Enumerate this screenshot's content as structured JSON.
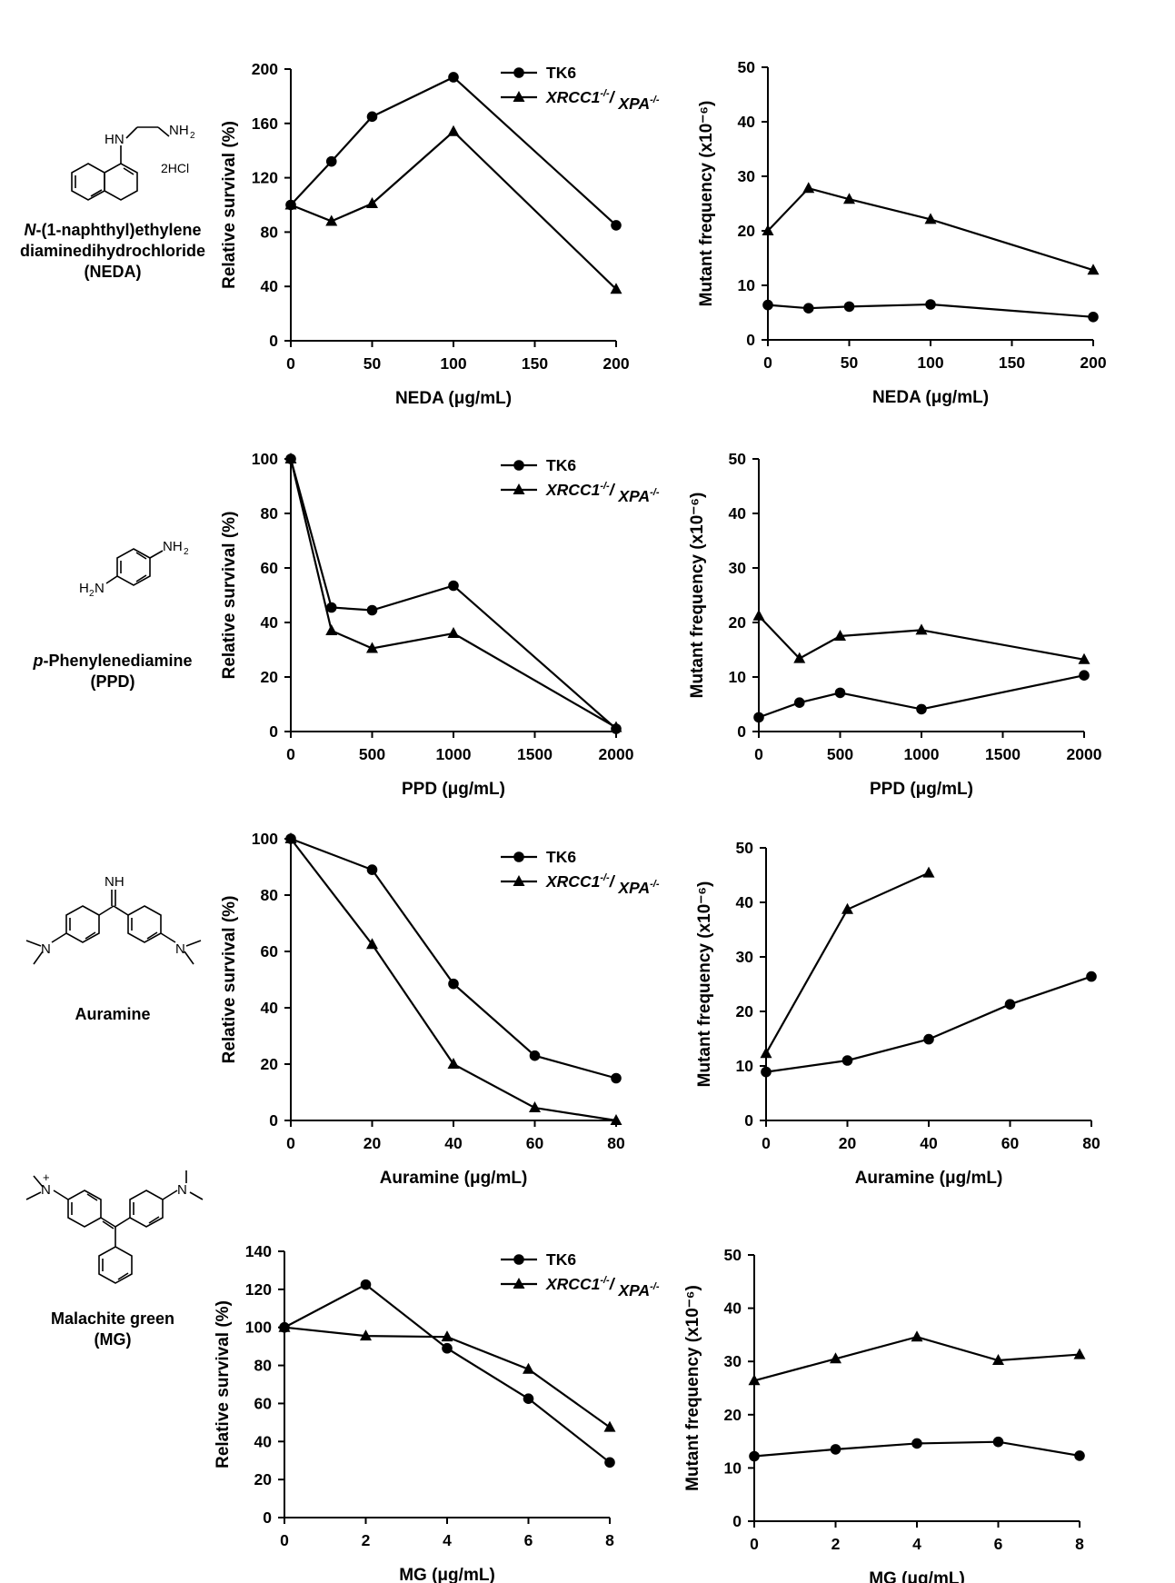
{
  "compounds": [
    {
      "name_italic": "N",
      "name_line1_rest": "-(1-naphthyl)ethylene",
      "name_line2": "diaminedihydrochloride",
      "name_line3": "(NEDA)",
      "structure_labels": {
        "amine": "HN",
        "amine2": "NH",
        "amine2_sub": "2",
        "salt": "2HCl"
      }
    },
    {
      "name_italic": "p",
      "name_line1_rest": "-Phenylenediamine",
      "name_line2": "(PPD)",
      "structure_labels": {
        "top": "NH",
        "top_sub": "2",
        "bottom_h": "H",
        "bottom_sub": "2",
        "bottom_n": "N"
      }
    },
    {
      "name_line1": "Auramine",
      "structure_labels": {
        "imine": "NH",
        "n_left": "N",
        "n_right": "N"
      }
    },
    {
      "name_line1": "Malachite green",
      "name_line2": "(MG)",
      "structure_labels": {
        "n_left": "N",
        "plus": "+",
        "n_right": "N"
      }
    }
  ],
  "legend": {
    "tk6": "TK6",
    "mut_a": "XRCC1",
    "mut_a_sup": "-/-",
    "mut_sep": "/ ",
    "mut_b": "XPA",
    "mut_b_sup": "-/-"
  },
  "chart_data": [
    {
      "type": "line",
      "panel": "NEDA survival",
      "xlabel": "NEDA (μg/mL)",
      "ylabel": "Relative survival (%)",
      "xlim": [
        0,
        200
      ],
      "xticks": [
        0,
        50,
        100,
        150,
        200
      ],
      "ylim": [
        0,
        200
      ],
      "yticks": [
        0,
        40,
        80,
        120,
        160,
        200
      ],
      "legend": true,
      "series": [
        {
          "name": "TK6",
          "marker": "circle",
          "x": [
            0,
            25,
            50,
            100,
            200
          ],
          "y": [
            100,
            132,
            165,
            194,
            85
          ]
        },
        {
          "name": "XRCC1-/-/ XPA-/-",
          "marker": "triangle",
          "x": [
            0,
            25,
            50,
            100,
            200
          ],
          "y": [
            100,
            88,
            101,
            154,
            38
          ]
        }
      ]
    },
    {
      "type": "line",
      "panel": "NEDA mutant frequency",
      "xlabel": "NEDA (μg/mL)",
      "ylabel": "Mutant frequency (x10⁻⁶)",
      "xlim": [
        0,
        200
      ],
      "xticks": [
        0,
        50,
        100,
        150,
        200
      ],
      "ylim": [
        0,
        50
      ],
      "yticks": [
        0,
        10,
        20,
        30,
        40,
        50
      ],
      "legend": false,
      "series": [
        {
          "name": "TK6",
          "marker": "circle",
          "x": [
            0,
            25,
            50,
            100,
            200
          ],
          "y": [
            6.4,
            5.8,
            6.1,
            6.5,
            4.2
          ]
        },
        {
          "name": "XRCC1-/-/ XPA-/-",
          "marker": "triangle",
          "x": [
            0,
            25,
            50,
            100,
            200
          ],
          "y": [
            20,
            27.8,
            25.8,
            22.1,
            12.8
          ]
        }
      ]
    },
    {
      "type": "line",
      "panel": "PPD survival",
      "xlabel": "PPD (μg/mL)",
      "ylabel": "Relative survival (%)",
      "xlim": [
        0,
        2000
      ],
      "xticks": [
        0,
        500,
        1000,
        1500,
        2000
      ],
      "ylim": [
        0,
        100
      ],
      "yticks": [
        0,
        20,
        40,
        60,
        80,
        100
      ],
      "legend": true,
      "series": [
        {
          "name": "TK6",
          "marker": "circle",
          "x": [
            0,
            250,
            500,
            1000,
            2000
          ],
          "y": [
            100,
            45.5,
            44.5,
            53.5,
            1
          ]
        },
        {
          "name": "XRCC1-/-/ XPA-/-",
          "marker": "triangle",
          "x": [
            0,
            250,
            500,
            1000,
            2000
          ],
          "y": [
            100,
            37,
            30.5,
            36,
            1.5
          ]
        }
      ]
    },
    {
      "type": "line",
      "panel": "PPD mutant frequency",
      "xlabel": "PPD (μg/mL)",
      "ylabel": "Mutant frequency (x10⁻⁶)",
      "xlim": [
        0,
        2000
      ],
      "xticks": [
        0,
        500,
        1000,
        1500,
        2000
      ],
      "ylim": [
        0,
        50
      ],
      "yticks": [
        0,
        10,
        20,
        30,
        40,
        50
      ],
      "legend": false,
      "series": [
        {
          "name": "TK6",
          "marker": "circle",
          "x": [
            0,
            250,
            500,
            1000,
            2000
          ],
          "y": [
            2.6,
            5.3,
            7.1,
            4.1,
            10.3
          ]
        },
        {
          "name": "XRCC1-/-/ XPA-/-",
          "marker": "triangle",
          "x": [
            0,
            250,
            500,
            1000,
            2000
          ],
          "y": [
            21.2,
            13.4,
            17.5,
            18.6,
            13.2
          ]
        }
      ]
    },
    {
      "type": "line",
      "panel": "Auramine survival",
      "xlabel": "Auramine (μg/mL)",
      "ylabel": "Relative survival (%)",
      "xlim": [
        0,
        80
      ],
      "xticks": [
        0,
        20,
        40,
        60,
        80
      ],
      "ylim": [
        0,
        100
      ],
      "yticks": [
        0,
        20,
        40,
        60,
        80,
        100
      ],
      "legend": true,
      "series": [
        {
          "name": "TK6",
          "marker": "circle",
          "x": [
            0,
            20,
            40,
            60,
            80
          ],
          "y": [
            100,
            89,
            48.5,
            23,
            15
          ]
        },
        {
          "name": "XRCC1-/-/ XPA-/-",
          "marker": "triangle",
          "x": [
            0,
            20,
            40,
            60,
            80
          ],
          "y": [
            100,
            62.5,
            20,
            4.5,
            0
          ]
        }
      ]
    },
    {
      "type": "line",
      "panel": "Auramine mutant frequency",
      "xlabel": "Auramine (μg/mL)",
      "ylabel": "Mutant frequency (x10⁻⁶)",
      "xlim": [
        0,
        80
      ],
      "xticks": [
        0,
        20,
        40,
        60,
        80
      ],
      "ylim": [
        0,
        50
      ],
      "yticks": [
        0,
        10,
        20,
        30,
        40,
        50
      ],
      "legend": false,
      "series": [
        {
          "name": "TK6",
          "marker": "circle",
          "x": [
            0,
            20,
            40,
            60,
            80
          ],
          "y": [
            8.9,
            11,
            14.9,
            21.3,
            26.4
          ]
        },
        {
          "name": "XRCC1-/-/ XPA-/-",
          "marker": "triangle",
          "x": [
            0,
            20,
            40
          ],
          "y": [
            12.3,
            38.7,
            45.4
          ]
        }
      ]
    },
    {
      "type": "line",
      "panel": "MG survival",
      "xlabel": "MG (μg/mL)",
      "ylabel": "Relative survival (%)",
      "xlim": [
        0,
        8
      ],
      "xticks": [
        0,
        2,
        4,
        6,
        8
      ],
      "ylim": [
        0,
        140
      ],
      "yticks": [
        0,
        20,
        40,
        60,
        80,
        100,
        120,
        140
      ],
      "legend": true,
      "series": [
        {
          "name": "TK6",
          "marker": "circle",
          "x": [
            0,
            2,
            4,
            6,
            8
          ],
          "y": [
            100,
            122.5,
            89,
            62.5,
            29
          ]
        },
        {
          "name": "XRCC1-/-/ XPA-/-",
          "marker": "triangle",
          "x": [
            0,
            2,
            4,
            6,
            8
          ],
          "y": [
            100,
            95.5,
            95,
            78,
            47.5
          ]
        }
      ]
    },
    {
      "type": "line",
      "panel": "MG mutant frequency",
      "xlabel": "MG (μg/mL)",
      "ylabel": "Mutant frequency (x10⁻⁶)",
      "xlim": [
        0,
        8
      ],
      "xticks": [
        0,
        2,
        4,
        6,
        8
      ],
      "ylim": [
        0,
        50
      ],
      "yticks": [
        0,
        10,
        20,
        30,
        40,
        50
      ],
      "legend": false,
      "series": [
        {
          "name": "TK6",
          "marker": "circle",
          "x": [
            0,
            2,
            4,
            6,
            8
          ],
          "y": [
            12.2,
            13.5,
            14.6,
            14.9,
            12.3
          ]
        },
        {
          "name": "XRCC1-/-/ XPA-/-",
          "marker": "triangle",
          "x": [
            0,
            2,
            4,
            6,
            8
          ],
          "y": [
            26.4,
            30.5,
            34.6,
            30.2,
            31.3
          ]
        }
      ]
    }
  ]
}
